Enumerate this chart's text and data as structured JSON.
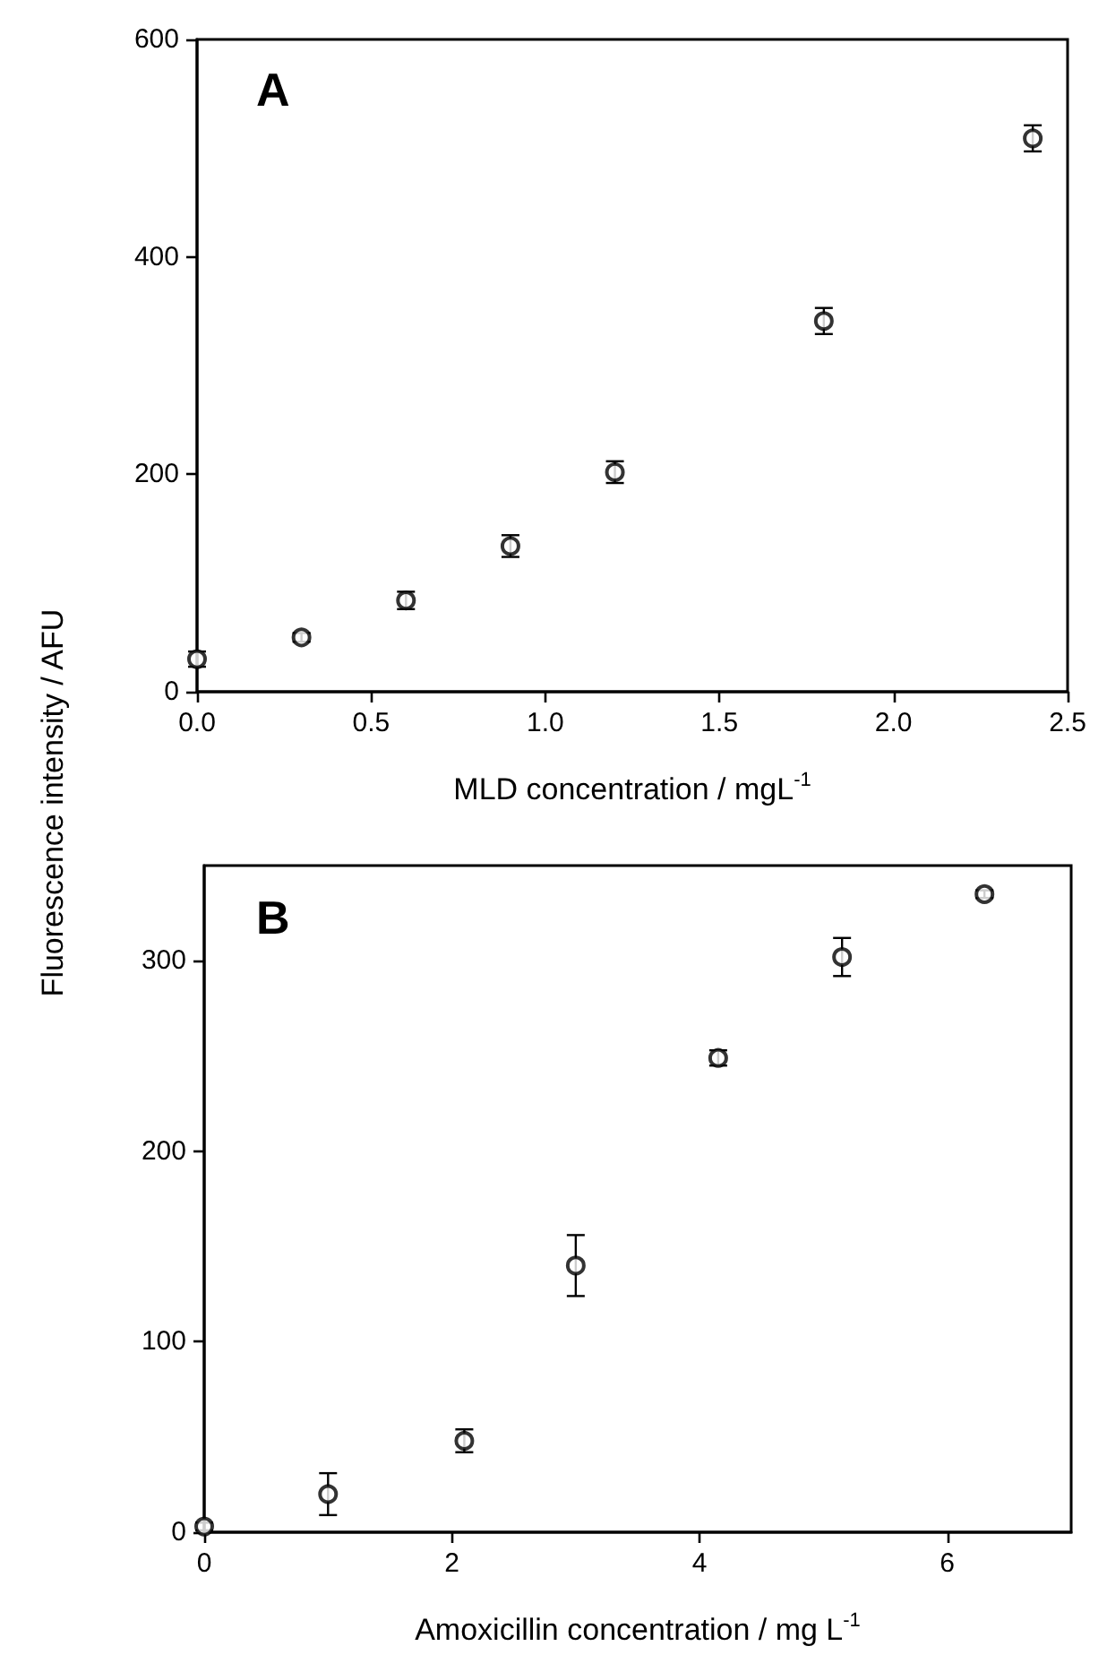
{
  "chart_data": [
    {
      "type": "scatter",
      "title": "A",
      "xlabel": "MLD concentration / mgL$^{-1}$",
      "ylabel": "Fluorescence intensity / AFU",
      "x": [
        0,
        0.3,
        0.6,
        0.9,
        1.2,
        1.8,
        2.4
      ],
      "series": [
        {
          "color": "#000000",
          "values": [
            30,
            50,
            84,
            134,
            202,
            341,
            509
          ],
          "errors": [
            7,
            4,
            8,
            10,
            10,
            12,
            12
          ]
        }
      ],
      "xlim": [
        0,
        2.5
      ],
      "ylim": [
        0,
        600
      ],
      "xticks": [
        {
          "value": 0,
          "label": "0.0"
        },
        {
          "value": 0.5,
          "label": "0.5"
        },
        {
          "value": 1,
          "label": "1.0"
        },
        {
          "value": 1.5,
          "label": "1.5"
        },
        {
          "value": 2,
          "label": "2.0"
        },
        {
          "value": 2.5,
          "label": "2.5"
        }
      ],
      "yticks": [
        0,
        200,
        400,
        600
      ],
      "marker": "circle",
      "grid": false
    },
    {
      "type": "scatter",
      "title": "B",
      "xlabel": "Amoxicillin concentration / mg L$^{-1}$",
      "x": [
        0,
        1,
        2.1,
        3,
        4.15,
        5.15,
        6.3
      ],
      "series": [
        {
          "color": "#000000",
          "values": [
            3,
            20,
            48,
            140,
            249,
            302,
            335
          ],
          "errors": [
            2,
            11,
            6,
            16,
            4,
            10,
            2
          ]
        }
      ],
      "xlim": [
        0,
        7
      ],
      "ylim": [
        0,
        350
      ],
      "xticks": [
        0,
        2,
        4,
        6
      ],
      "yticks": [
        0,
        100,
        200,
        300
      ],
      "marker": "circle",
      "grid": false
    }
  ]
}
